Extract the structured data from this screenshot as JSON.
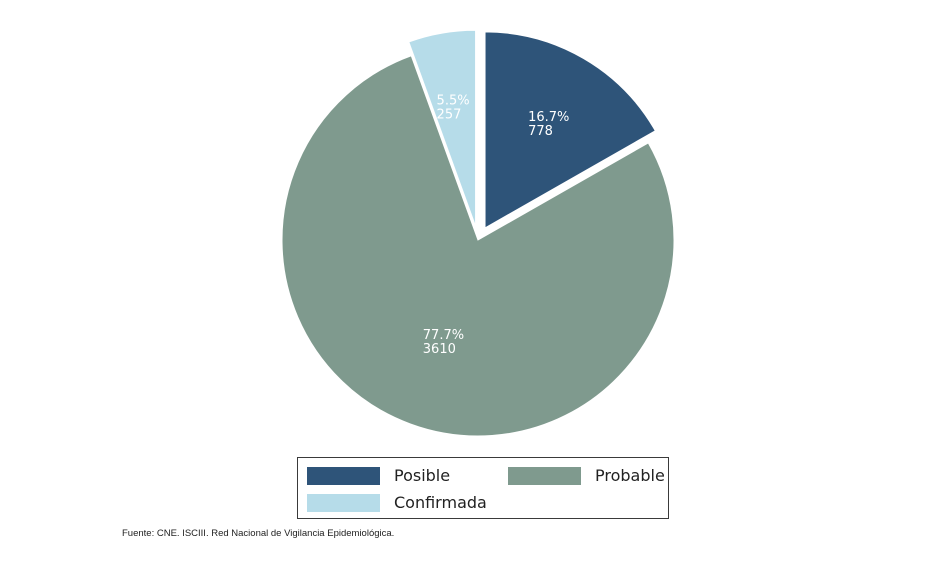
{
  "chart_data": {
    "type": "pie",
    "slices": [
      {
        "name": "Posible",
        "percent": "16.7%",
        "value": 778,
        "color": "#2e5479",
        "exploded": true
      },
      {
        "name": "Probable",
        "percent": "77.7%",
        "value": 3610,
        "color": "#7f9a8e",
        "exploded": false
      },
      {
        "name": "Confirmada",
        "percent": "5.5%",
        "value": 257,
        "color": "#b6dce9",
        "exploded": true
      }
    ],
    "legend": {
      "placement": "bottom",
      "entries": [
        "Posible",
        "Probable",
        "Confirmada"
      ]
    }
  },
  "source": "Fuente: CNE. ISCIII. Red Nacional de Vigilancia Epidemiológica."
}
